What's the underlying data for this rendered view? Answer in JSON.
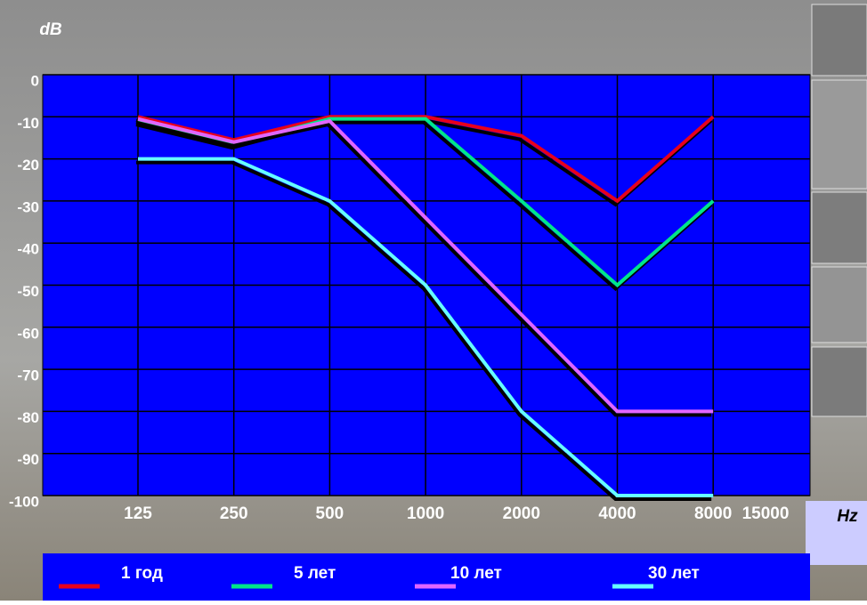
{
  "chart_data": {
    "type": "line",
    "y_axis_label": "dB",
    "x_axis_label": "Hz",
    "categories": [
      "125",
      "250",
      "500",
      "1000",
      "2000",
      "4000",
      "8000",
      "15000"
    ],
    "series": [
      {
        "name": "1 год",
        "color": "#e8001c",
        "values": [
          -10,
          -15.5,
          -10,
          -10,
          -14.5,
          -30,
          -10,
          null
        ]
      },
      {
        "name": "5 лет",
        "color": "#00e68a",
        "values": [
          -11,
          -16.5,
          -10.5,
          -10.5,
          -30,
          -50,
          -30,
          null
        ]
      },
      {
        "name": "10 лет",
        "color": "#e066ff",
        "values": [
          -10.5,
          -16,
          -11,
          -34,
          -57,
          -80,
          -80,
          null
        ]
      },
      {
        "name": "30 лет",
        "color": "#66ffff",
        "values": [
          -20,
          -20,
          -30,
          -50,
          -80,
          -100,
          -100,
          null
        ]
      }
    ],
    "ylim": [
      -100,
      0
    ],
    "yticks": [
      0,
      -10,
      -20,
      -30,
      -40,
      -50,
      -60,
      -70,
      -80,
      -90,
      -100
    ],
    "grid": true
  }
}
